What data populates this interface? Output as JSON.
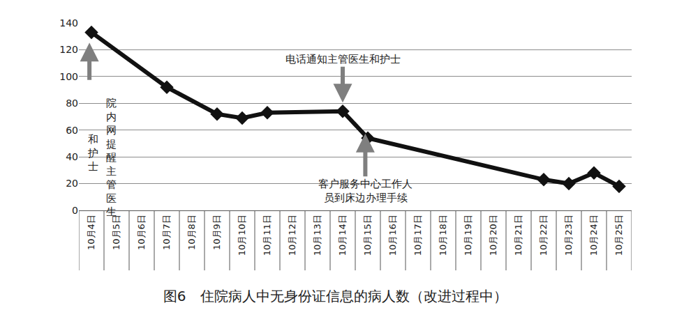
{
  "chart_data": {
    "type": "line",
    "title": "图6　住院病人中无身份证信息的病人数（改进过程中）",
    "categories": [
      "10月4日",
      "10月5日",
      "10月6日",
      "10月7日",
      "10月8日",
      "10月9日",
      "10月10日",
      "10月11日",
      "10月12日",
      "10月13日",
      "10月14日",
      "10月15日",
      "10月16日",
      "10月17日",
      "10月18日",
      "10月19日",
      "10月20日",
      "10月21日",
      "10月22日",
      "10月23日",
      "10月24日",
      "10月25日"
    ],
    "values": [
      133,
      null,
      null,
      92,
      null,
      72,
      69,
      73,
      null,
      null,
      74,
      54,
      null,
      null,
      null,
      null,
      null,
      null,
      23,
      20,
      28,
      18
    ],
    "color": "#111111",
    "marker": "diamond",
    "ylim": [
      0,
      140
    ],
    "yticks": [
      0,
      20,
      40,
      60,
      80,
      100,
      120,
      140
    ],
    "grid": true,
    "annotations": [
      {
        "lines": [
          "院内网提醒主管医生",
          "和护士"
        ],
        "category": "10月4日"
      },
      {
        "lines": [
          "电话通知主管医生和护士"
        ],
        "category": "10月14日"
      },
      {
        "lines": [
          "客户服务中心工作人",
          "员到床边办理手续"
        ],
        "category": "10月15日"
      }
    ]
  }
}
